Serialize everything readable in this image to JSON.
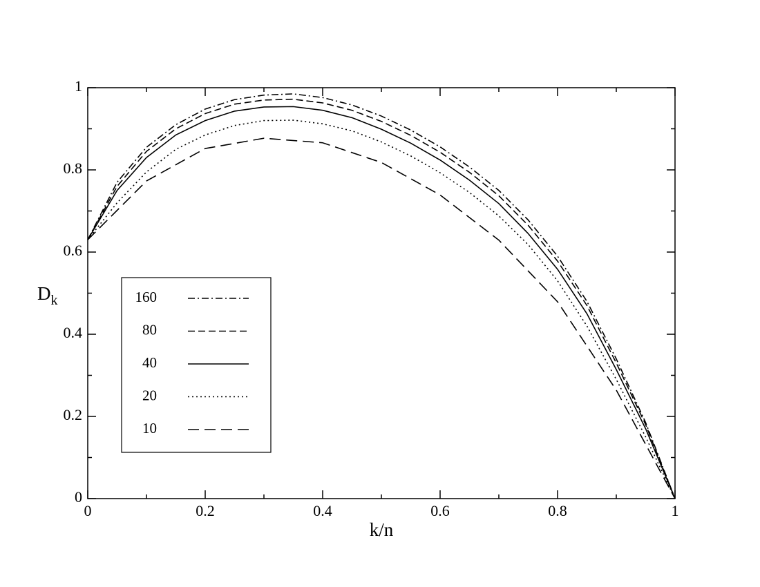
{
  "chart_data": {
    "type": "line",
    "xlabel": "k/n",
    "ylabel": {
      "main": "D",
      "subscript": "k"
    },
    "xlim": [
      0,
      1
    ],
    "ylim": [
      0,
      1
    ],
    "xticks": [
      0,
      0.2,
      0.4,
      0.6,
      0.8,
      1
    ],
    "yticks": [
      0,
      0.2,
      0.4,
      0.6,
      0.8,
      1
    ],
    "xminorticks": [
      0.1,
      0.3,
      0.5,
      0.7,
      0.9
    ],
    "yminorticks": [
      0.1,
      0.3,
      0.5,
      0.7,
      0.9
    ],
    "series": [
      {
        "name": "160",
        "color": "#000000",
        "linestyle": "dashdot",
        "x": [
          0,
          0.05,
          0.1,
          0.15,
          0.2,
          0.25,
          0.3,
          0.35,
          0.4,
          0.45,
          0.5,
          0.55,
          0.6,
          0.65,
          0.7,
          0.75,
          0.8,
          0.85,
          0.9,
          0.95,
          1
        ],
        "values": [
          0.63,
          0.77,
          0.855,
          0.91,
          0.948,
          0.971,
          0.982,
          0.985,
          0.976,
          0.958,
          0.931,
          0.897,
          0.856,
          0.807,
          0.75,
          0.678,
          0.59,
          0.48,
          0.34,
          0.185,
          0
        ]
      },
      {
        "name": "80",
        "color": "#000000",
        "linestyle": "dashed",
        "x": [
          0,
          0.05,
          0.1,
          0.15,
          0.2,
          0.25,
          0.3,
          0.35,
          0.4,
          0.45,
          0.5,
          0.55,
          0.6,
          0.65,
          0.7,
          0.75,
          0.8,
          0.85,
          0.9,
          0.95,
          1
        ],
        "values": [
          0.63,
          0.76,
          0.845,
          0.9,
          0.937,
          0.96,
          0.97,
          0.972,
          0.963,
          0.945,
          0.918,
          0.884,
          0.843,
          0.794,
          0.737,
          0.665,
          0.578,
          0.47,
          0.33,
          0.18,
          0
        ]
      },
      {
        "name": "40",
        "color": "#000000",
        "linestyle": "solid",
        "x": [
          0,
          0.05,
          0.1,
          0.15,
          0.2,
          0.25,
          0.3,
          0.35,
          0.4,
          0.45,
          0.5,
          0.55,
          0.6,
          0.65,
          0.7,
          0.75,
          0.8,
          0.85,
          0.9,
          0.95,
          1
        ],
        "values": [
          0.63,
          0.75,
          0.83,
          0.885,
          0.92,
          0.943,
          0.953,
          0.954,
          0.945,
          0.927,
          0.899,
          0.865,
          0.824,
          0.775,
          0.718,
          0.645,
          0.558,
          0.45,
          0.314,
          0.17,
          0
        ]
      },
      {
        "name": "20",
        "color": "#000000",
        "linestyle": "dotted",
        "x": [
          0,
          0.05,
          0.1,
          0.15,
          0.2,
          0.25,
          0.3,
          0.35,
          0.4,
          0.45,
          0.5,
          0.55,
          0.6,
          0.65,
          0.7,
          0.75,
          0.8,
          0.85,
          0.9,
          0.95,
          1
        ],
        "values": [
          0.63,
          0.72,
          0.795,
          0.85,
          0.885,
          0.908,
          0.92,
          0.921,
          0.912,
          0.895,
          0.868,
          0.834,
          0.793,
          0.745,
          0.688,
          0.618,
          0.53,
          0.42,
          0.29,
          0.15,
          0
        ]
      },
      {
        "name": "10",
        "color": "#000000",
        "linestyle": "longdash",
        "x": [
          0,
          0.1,
          0.2,
          0.3,
          0.4,
          0.5,
          0.6,
          0.7,
          0.8,
          0.9,
          1
        ],
        "values": [
          0.63,
          0.773,
          0.852,
          0.877,
          0.866,
          0.818,
          0.739,
          0.629,
          0.479,
          0.264,
          0
        ]
      }
    ]
  }
}
